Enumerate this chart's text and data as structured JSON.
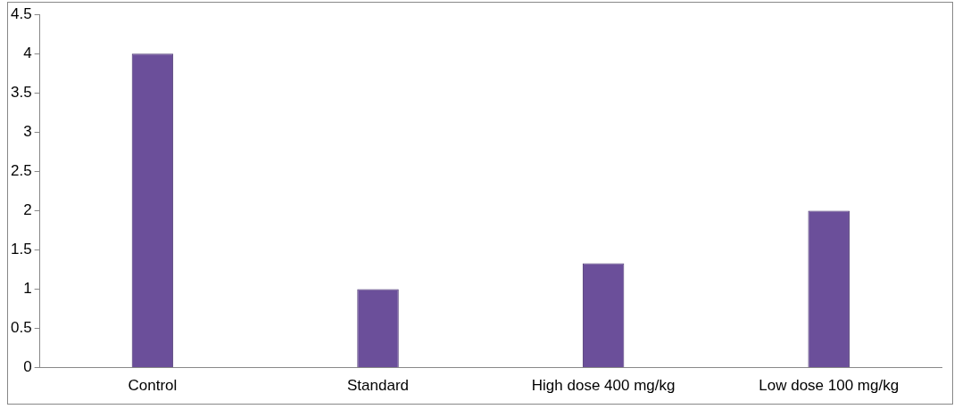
{
  "chart_data": {
    "type": "bar",
    "categories": [
      "Control",
      "Standard",
      "High dose 400 mg/kg",
      "Low dose 100 mg/kg"
    ],
    "series": [
      {
        "color": "#6b4f9a",
        "values": [
          4,
          1,
          1.33,
          2
        ]
      }
    ],
    "ylim": [
      0,
      4.5
    ],
    "yticks": [
      0,
      0.5,
      1,
      1.5,
      2,
      2.5,
      3,
      3.5,
      4,
      4.5
    ],
    "grid": false,
    "legend": false
  }
}
